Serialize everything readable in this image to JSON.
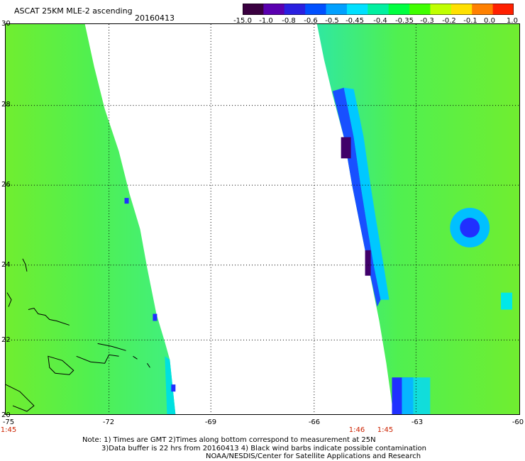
{
  "header": {
    "title": "ASCAT 25KM MLE-2 ascending",
    "date": "20160413"
  },
  "colorbar": {
    "labels": [
      "-15.0",
      "-1.0",
      "-0.8",
      "-0.6",
      "-0.5",
      "-0.45",
      "-0.4",
      "-0.35",
      "-0.3",
      "-0.2",
      "-0.1",
      "0.0",
      "1.0"
    ],
    "colors": [
      "#3a0040",
      "#5a00b0",
      "#2a20e0",
      "#0050ff",
      "#00a0ff",
      "#00e0ff",
      "#00f0a0",
      "#00ff40",
      "#40ff00",
      "#c0ff00",
      "#ffe000",
      "#ff8000",
      "#ff2000"
    ]
  },
  "map": {
    "lat_labels": [
      "30",
      "28",
      "26",
      "24",
      "22",
      "20"
    ],
    "lon_labels": [
      "-75",
      "-72",
      "-69",
      "-66",
      "-63",
      "-60"
    ],
    "time_labels": [
      "1:45",
      "1:46",
      "1:45"
    ],
    "swath_fill": "#5cf040"
  },
  "notes": [
    "Note: 1) Times are GMT 2)Times along bottom correspond to measurement at 25N",
    "3)Data buffer is 22 hrs from 20160413 4) Black wind barbs indicate possible contamination",
    "NOAA/NESDIS/Center for Satellite Applications and Research"
  ]
}
